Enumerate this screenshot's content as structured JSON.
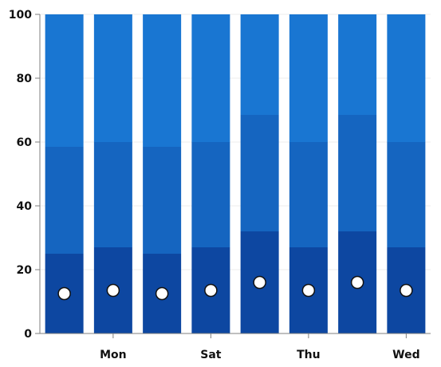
{
  "chart_data": {
    "type": "bar",
    "stacked": true,
    "categories": [
      "",
      "Mon",
      "",
      "Sat",
      "",
      "Thu",
      "",
      "Wed"
    ],
    "x_tick_labels": [
      "Mon",
      "Sat",
      "Thu",
      "Wed"
    ],
    "ylim": [
      0,
      100
    ],
    "y_ticks": [
      0,
      20,
      40,
      60,
      80,
      100
    ],
    "grid": true,
    "series": [
      {
        "values": [
          25,
          27,
          25,
          27,
          32,
          27,
          32,
          27
        ]
      },
      {
        "values": [
          33.5,
          33,
          33.5,
          33,
          36.5,
          33,
          36.5,
          33
        ]
      },
      {
        "values": [
          41.5,
          40,
          41.5,
          40,
          31.5,
          40,
          31.5,
          40
        ]
      }
    ],
    "markers": [
      12.5,
      13.5,
      12.5,
      13.5,
      16,
      13.5,
      16,
      13.5
    ],
    "colors": {
      "series": [
        "#0d47a1",
        "#1565c0",
        "#1976d2"
      ],
      "marker_fill": "#ffffff",
      "marker_stroke": "#111111",
      "axis": "#7f7f7f",
      "grid": "#eeeeee"
    }
  }
}
